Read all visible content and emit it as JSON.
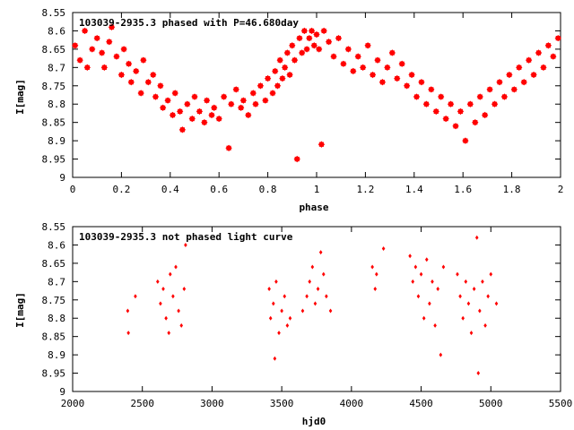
{
  "colors": {
    "points": "#ff0000",
    "frame": "#000000",
    "background": "#ffffff"
  },
  "chart_data": [
    {
      "type": "scatter",
      "title": "103039-2935.3 phased with P=46.680day",
      "xlabel": "phase",
      "ylabel": "I[mag]",
      "xlim": [
        0,
        2
      ],
      "ylim": [
        8.55,
        9
      ],
      "y_inverted": true,
      "grid": false,
      "marker": "filled-star",
      "xticks": [
        0,
        0.2,
        0.4,
        0.6,
        0.8,
        1,
        1.2,
        1.4,
        1.6,
        1.8,
        2
      ],
      "xtick_labels": [
        "0",
        "0.2",
        "0.4",
        "0.6",
        "0.8",
        "1",
        "1.2",
        "1.4",
        "1.6",
        "1.8",
        "2"
      ],
      "yticks": [
        8.55,
        8.6,
        8.65,
        8.7,
        8.75,
        8.8,
        8.85,
        8.9,
        8.95,
        9
      ],
      "ytick_labels": [
        "8.55",
        "8.6",
        "8.65",
        "8.7",
        "8.75",
        "8.8",
        "8.85",
        "8.9",
        "8.95",
        "9"
      ],
      "points": [
        [
          0.01,
          8.64
        ],
        [
          0.03,
          8.68
        ],
        [
          0.05,
          8.6
        ],
        [
          0.06,
          8.7
        ],
        [
          0.08,
          8.65
        ],
        [
          0.1,
          8.62
        ],
        [
          0.12,
          8.66
        ],
        [
          0.13,
          8.7
        ],
        [
          0.15,
          8.63
        ],
        [
          0.16,
          8.59
        ],
        [
          0.18,
          8.67
        ],
        [
          0.2,
          8.72
        ],
        [
          0.21,
          8.65
        ],
        [
          0.23,
          8.69
        ],
        [
          0.24,
          8.74
        ],
        [
          0.26,
          8.71
        ],
        [
          0.28,
          8.77
        ],
        [
          0.29,
          8.68
        ],
        [
          0.31,
          8.74
        ],
        [
          0.33,
          8.72
        ],
        [
          0.34,
          8.78
        ],
        [
          0.36,
          8.75
        ],
        [
          0.37,
          8.81
        ],
        [
          0.39,
          8.79
        ],
        [
          0.41,
          8.83
        ],
        [
          0.42,
          8.77
        ],
        [
          0.44,
          8.82
        ],
        [
          0.45,
          8.87
        ],
        [
          0.47,
          8.8
        ],
        [
          0.49,
          8.84
        ],
        [
          0.5,
          8.78
        ],
        [
          0.52,
          8.82
        ],
        [
          0.54,
          8.85
        ],
        [
          0.55,
          8.79
        ],
        [
          0.57,
          8.83
        ],
        [
          0.58,
          8.81
        ],
        [
          0.6,
          8.84
        ],
        [
          0.62,
          8.78
        ],
        [
          0.64,
          8.92
        ],
        [
          0.65,
          8.8
        ],
        [
          0.67,
          8.76
        ],
        [
          0.69,
          8.81
        ],
        [
          0.7,
          8.79
        ],
        [
          0.72,
          8.83
        ],
        [
          0.74,
          8.77
        ],
        [
          0.75,
          8.8
        ],
        [
          0.77,
          8.75
        ],
        [
          0.79,
          8.79
        ],
        [
          0.8,
          8.73
        ],
        [
          0.82,
          8.77
        ],
        [
          0.83,
          8.71
        ],
        [
          0.84,
          8.75
        ],
        [
          0.85,
          8.68
        ],
        [
          0.86,
          8.73
        ],
        [
          0.87,
          8.7
        ],
        [
          0.88,
          8.66
        ],
        [
          0.89,
          8.72
        ],
        [
          0.9,
          8.64
        ],
        [
          0.91,
          8.68
        ],
        [
          0.92,
          8.95
        ],
        [
          0.93,
          8.62
        ],
        [
          0.94,
          8.66
        ],
        [
          0.95,
          8.6
        ],
        [
          0.96,
          8.65
        ],
        [
          0.97,
          8.62
        ],
        [
          0.98,
          8.6
        ],
        [
          0.99,
          8.64
        ],
        [
          1.0,
          8.61
        ],
        [
          1.01,
          8.65
        ],
        [
          1.02,
          8.91
        ],
        [
          1.03,
          8.6
        ],
        [
          1.05,
          8.63
        ],
        [
          1.07,
          8.67
        ],
        [
          1.09,
          8.62
        ],
        [
          1.11,
          8.69
        ],
        [
          1.13,
          8.65
        ],
        [
          1.15,
          8.71
        ],
        [
          1.17,
          8.67
        ],
        [
          1.19,
          8.7
        ],
        [
          1.21,
          8.64
        ],
        [
          1.23,
          8.72
        ],
        [
          1.25,
          8.68
        ],
        [
          1.27,
          8.74
        ],
        [
          1.29,
          8.7
        ],
        [
          1.31,
          8.66
        ],
        [
          1.33,
          8.73
        ],
        [
          1.35,
          8.69
        ],
        [
          1.37,
          8.75
        ],
        [
          1.39,
          8.72
        ],
        [
          1.41,
          8.78
        ],
        [
          1.43,
          8.74
        ],
        [
          1.45,
          8.8
        ],
        [
          1.47,
          8.76
        ],
        [
          1.49,
          8.82
        ],
        [
          1.51,
          8.78
        ],
        [
          1.53,
          8.84
        ],
        [
          1.55,
          8.8
        ],
        [
          1.57,
          8.86
        ],
        [
          1.59,
          8.82
        ],
        [
          1.61,
          8.9
        ],
        [
          1.63,
          8.8
        ],
        [
          1.65,
          8.85
        ],
        [
          1.67,
          8.78
        ],
        [
          1.69,
          8.83
        ],
        [
          1.71,
          8.76
        ],
        [
          1.73,
          8.8
        ],
        [
          1.75,
          8.74
        ],
        [
          1.77,
          8.78
        ],
        [
          1.79,
          8.72
        ],
        [
          1.81,
          8.76
        ],
        [
          1.83,
          8.7
        ],
        [
          1.85,
          8.74
        ],
        [
          1.87,
          8.68
        ],
        [
          1.89,
          8.72
        ],
        [
          1.91,
          8.66
        ],
        [
          1.93,
          8.7
        ],
        [
          1.95,
          8.64
        ],
        [
          1.97,
          8.67
        ],
        [
          1.99,
          8.62
        ]
      ]
    },
    {
      "type": "scatter",
      "title": "103039-2935.3 not phased light curve",
      "xlabel": "hjd0",
      "ylabel": "I[mag]",
      "xlim": [
        2000,
        5500
      ],
      "ylim": [
        8.55,
        9
      ],
      "y_inverted": true,
      "grid": false,
      "marker": "small-diamond",
      "xticks": [
        2000,
        2500,
        3000,
        3500,
        4000,
        4500,
        5000,
        5500
      ],
      "xtick_labels": [
        "2000",
        "2500",
        "3000",
        "3500",
        "4000",
        "4500",
        "5000",
        "5500"
      ],
      "yticks": [
        8.55,
        8.6,
        8.65,
        8.7,
        8.75,
        8.8,
        8.85,
        8.9,
        8.95,
        9
      ],
      "ytick_labels": [
        "8.55",
        "8.6",
        "8.65",
        "8.7",
        "8.75",
        "8.8",
        "8.85",
        "8.9",
        "8.95",
        "9"
      ],
      "points": [
        [
          2395,
          8.78
        ],
        [
          2400,
          8.84
        ],
        [
          2450,
          8.74
        ],
        [
          2610,
          8.7
        ],
        [
          2630,
          8.76
        ],
        [
          2650,
          8.72
        ],
        [
          2670,
          8.8
        ],
        [
          2690,
          8.84
        ],
        [
          2700,
          8.68
        ],
        [
          2720,
          8.74
        ],
        [
          2740,
          8.66
        ],
        [
          2760,
          8.78
        ],
        [
          2780,
          8.82
        ],
        [
          2800,
          8.72
        ],
        [
          2810,
          8.6
        ],
        [
          3410,
          8.72
        ],
        [
          3420,
          8.8
        ],
        [
          3440,
          8.76
        ],
        [
          3450,
          8.91
        ],
        [
          3460,
          8.7
        ],
        [
          3480,
          8.84
        ],
        [
          3500,
          8.78
        ],
        [
          3520,
          8.74
        ],
        [
          3540,
          8.82
        ],
        [
          3560,
          8.8
        ],
        [
          3650,
          8.78
        ],
        [
          3680,
          8.74
        ],
        [
          3700,
          8.7
        ],
        [
          3720,
          8.66
        ],
        [
          3740,
          8.76
        ],
        [
          3760,
          8.72
        ],
        [
          3780,
          8.62
        ],
        [
          3800,
          8.68
        ],
        [
          3820,
          8.74
        ],
        [
          3850,
          8.78
        ],
        [
          4150,
          8.66
        ],
        [
          4170,
          8.72
        ],
        [
          4180,
          8.68
        ],
        [
          4230,
          8.61
        ],
        [
          4420,
          8.63
        ],
        [
          4440,
          8.7
        ],
        [
          4460,
          8.66
        ],
        [
          4480,
          8.74
        ],
        [
          4500,
          8.68
        ],
        [
          4520,
          8.8
        ],
        [
          4540,
          8.64
        ],
        [
          4560,
          8.76
        ],
        [
          4580,
          8.7
        ],
        [
          4600,
          8.82
        ],
        [
          4620,
          8.72
        ],
        [
          4640,
          8.9
        ],
        [
          4660,
          8.66
        ],
        [
          4760,
          8.68
        ],
        [
          4780,
          8.74
        ],
        [
          4800,
          8.8
        ],
        [
          4820,
          8.7
        ],
        [
          4840,
          8.76
        ],
        [
          4860,
          8.84
        ],
        [
          4880,
          8.72
        ],
        [
          4900,
          8.58
        ],
        [
          4910,
          8.95
        ],
        [
          4920,
          8.78
        ],
        [
          4940,
          8.7
        ],
        [
          4960,
          8.82
        ],
        [
          4980,
          8.74
        ],
        [
          5000,
          8.68
        ],
        [
          5040,
          8.76
        ]
      ]
    }
  ]
}
